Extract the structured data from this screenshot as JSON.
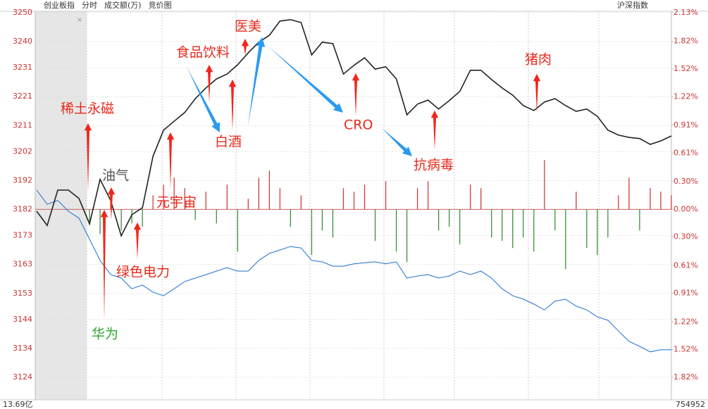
{
  "header": {
    "items": [
      "创业板指",
      "分时",
      "成交额(万)",
      "竞价图"
    ],
    "right": "沪深指数"
  },
  "footer": {
    "left": "13.69亿",
    "right": "754952"
  },
  "chart_data": {
    "type": "line",
    "series": [
      {
        "name": "创业板指",
        "color": "#222222",
        "values": [
          3181.4,
          3176.5,
          3188.7,
          3188.7,
          3185.8,
          3177.0,
          3192.4,
          3185.1,
          3172.9,
          3180.2,
          3182.6,
          3200.4,
          3209.4,
          3212.5,
          3215.5,
          3220.3,
          3224.0,
          3227.1,
          3228.8,
          3232.0,
          3236.1,
          3239.8,
          3242.2,
          3247.1,
          3247.6,
          3246.6,
          3235.4,
          3239.8,
          3239.3,
          3228.8,
          3231.8,
          3234.4,
          3230.5,
          3231.3,
          3227.1,
          3214.7,
          3218.4,
          3219.8,
          3216.7,
          3219.6,
          3222.8,
          3230.1,
          3230.1,
          3226.9,
          3224.0,
          3221.5,
          3217.9,
          3216.2,
          3219.1,
          3220.3,
          3217.9,
          3215.9,
          3216.7,
          3214.2,
          3209.4,
          3207.7,
          3206.9,
          3206.5,
          3204.5,
          3205.7,
          3207.4
        ]
      },
      {
        "name": "沪深指数",
        "color": "#1f6fd0",
        "values": [
          3188.7,
          3183.8,
          3185.1,
          3181.4,
          3179.0,
          3171.7,
          3164.4,
          3159.5,
          3158.3,
          3154.6,
          3155.9,
          3153.4,
          3152.2,
          3154.6,
          3157.1,
          3158.3,
          3159.5,
          3160.7,
          3161.9,
          3160.7,
          3160.7,
          3164.4,
          3166.8,
          3168.0,
          3169.2,
          3168.7,
          3164.4,
          3163.9,
          3162.4,
          3162.4,
          3163.2,
          3163.6,
          3163.9,
          3163.2,
          3163.9,
          3158.3,
          3159.0,
          3159.5,
          3158.3,
          3159.0,
          3160.7,
          3159.5,
          3160.7,
          3158.3,
          3154.6,
          3152.2,
          3151.0,
          3149.3,
          3147.3,
          3150.3,
          3151.0,
          3148.6,
          3147.3,
          3144.9,
          3143.7,
          3140.0,
          3136.4,
          3134.7,
          3132.8,
          3133.5,
          3133.5
        ]
      }
    ],
    "volume": {
      "up_color": "#d23b3b",
      "down_color": "#3a8f3a",
      "values": [
        null,
        null,
        null,
        null,
        null,
        -20,
        -35,
        25,
        -30,
        -20,
        -25,
        20,
        35,
        45,
        30,
        -15,
        25,
        -20,
        35,
        -60,
        15,
        45,
        55,
        30,
        -25,
        20,
        -65,
        -30,
        -40,
        30,
        25,
        35,
        -45,
        40,
        -60,
        -75,
        30,
        40,
        -30,
        -25,
        -50,
        35,
        30,
        -40,
        -45,
        -55,
        -40,
        -60,
        70,
        -30,
        -85,
        25,
        -55,
        -65,
        -40,
        20,
        45,
        -30,
        30,
        25,
        20
      ]
    },
    "ylim": [
      3124,
      3250
    ],
    "yticks": [
      3250,
      3240,
      3231,
      3221,
      3211,
      3202,
      3192,
      3182,
      3173,
      3163,
      3153,
      3144,
      3134,
      3124
    ],
    "y2lim": [
      -1.82,
      2.13
    ],
    "y2ticks": [
      {
        "value": 2.13,
        "label": "2.13%"
      },
      {
        "value": 1.82,
        "label": "1.82%"
      },
      {
        "value": 1.52,
        "label": "1.52%"
      },
      {
        "value": 1.22,
        "label": "1.22%"
      },
      {
        "value": 0.91,
        "label": "0.91%"
      },
      {
        "value": 0.61,
        "label": "0.61%"
      },
      {
        "value": 0.3,
        "label": "0.30%"
      },
      {
        "value": 0,
        "label": "0.00%"
      },
      {
        "value": -0.3,
        "label": "0.30%"
      },
      {
        "value": -0.61,
        "label": "0.61%"
      },
      {
        "value": -0.91,
        "label": "0.91%"
      },
      {
        "value": -1.22,
        "label": "1.22%"
      },
      {
        "value": -1.52,
        "label": "1.52%"
      },
      {
        "value": -1.82,
        "label": "1.82%"
      }
    ],
    "grid": true,
    "annotations": [
      {
        "text": "稀土永磁",
        "color": "#e8291c"
      },
      {
        "text": "油气",
        "color": "#555555"
      },
      {
        "text": "元宇宙",
        "color": "#e8291c"
      },
      {
        "text": "绿色电力",
        "color": "#e8291c"
      },
      {
        "text": "华为",
        "color": "#2aa52a"
      },
      {
        "text": "食品饮料",
        "color": "#e8291c"
      },
      {
        "text": "白酒",
        "color": "#e8291c"
      },
      {
        "text": "医美",
        "color": "#e8291c"
      },
      {
        "text": "CRO",
        "color": "#e8291c"
      },
      {
        "text": "抗病毒",
        "color": "#e8291c"
      },
      {
        "text": "猪肉",
        "color": "#e8291c"
      }
    ]
  }
}
